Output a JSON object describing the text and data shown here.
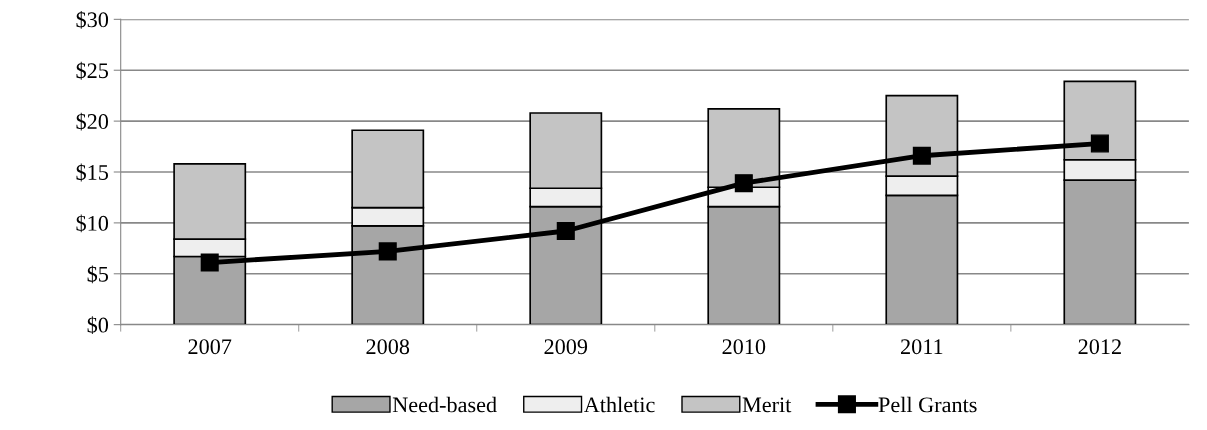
{
  "chart_data": {
    "type": "bar",
    "stacked": true,
    "categories": [
      "2007",
      "2008",
      "2009",
      "2010",
      "2011",
      "2012"
    ],
    "series": [
      {
        "name": "Need-based",
        "color": "#a6a6a6",
        "values": [
          6.7,
          9.7,
          11.6,
          11.6,
          12.7,
          14.2
        ]
      },
      {
        "name": "Athletic",
        "color": "#eeeeee",
        "values": [
          1.7,
          1.8,
          1.8,
          1.9,
          1.9,
          2.0
        ]
      },
      {
        "name": "Merit",
        "color": "#c4c4c4",
        "values": [
          7.4,
          7.6,
          7.4,
          7.7,
          7.9,
          7.7
        ]
      },
      {
        "name": "Pell Grants",
        "type": "line",
        "color": "#000000",
        "marker": "square",
        "line_style": "solid",
        "values": [
          6.1,
          7.2,
          9.2,
          13.9,
          16.6,
          17.8
        ]
      }
    ],
    "ylim": [
      0,
      30
    ],
    "yticks": [
      {
        "value": 0,
        "label": "$0"
      },
      {
        "value": 5,
        "label": "$5"
      },
      {
        "value": 10,
        "label": "$10"
      },
      {
        "value": 15,
        "label": "$15"
      },
      {
        "value": 20,
        "label": "$20"
      },
      {
        "value": 25,
        "label": "$25"
      },
      {
        "value": 30,
        "label": "$30"
      }
    ],
    "grid": "y",
    "legend": "bottom"
  }
}
